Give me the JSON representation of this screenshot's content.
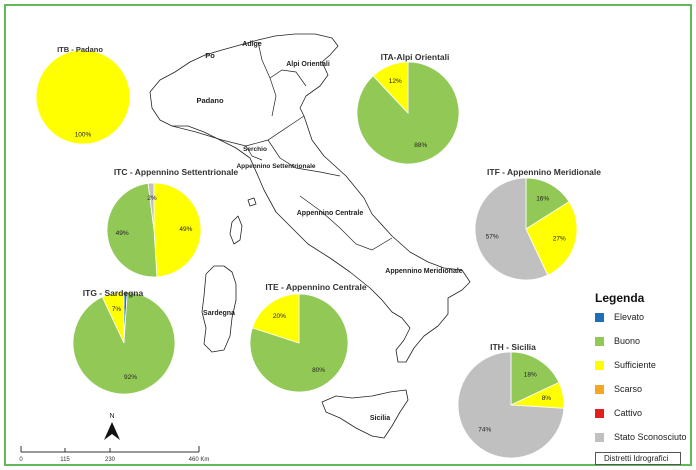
{
  "regions": [
    {
      "key": "po",
      "label": "Po"
    },
    {
      "key": "adige",
      "label": "Adige"
    },
    {
      "key": "alpi",
      "label": "Alpi Orientali"
    },
    {
      "key": "padano",
      "label": "Padano"
    },
    {
      "key": "serchio",
      "label": "Serchio"
    },
    {
      "key": "app_sett",
      "label": "Appennino Settentrionale"
    },
    {
      "key": "app_centr",
      "label": "Appennino Centrale"
    },
    {
      "key": "app_merid",
      "label": "Appennino Meridionale"
    },
    {
      "key": "sardegna",
      "label": "Sardegna"
    },
    {
      "key": "sicilia",
      "label": "Sicilia"
    }
  ],
  "chart_data": [
    {
      "type": "pie",
      "title": "ITB - Padano",
      "labels": [
        "Sufficiente"
      ],
      "values": [
        100
      ],
      "value_labels": [
        "100%"
      ]
    },
    {
      "type": "pie",
      "title": "ITA-Alpi Orientali",
      "labels": [
        "Buono",
        "Sufficiente"
      ],
      "values": [
        88,
        12
      ],
      "value_labels": [
        "88%",
        "12%"
      ]
    },
    {
      "type": "pie",
      "title": "ITC - Appennino Settentrionale",
      "labels": [
        "Sufficiente",
        "Buono",
        "Stato Sconosciuto"
      ],
      "values": [
        49,
        49,
        2
      ],
      "value_labels": [
        "49%",
        "49%",
        "2%"
      ]
    },
    {
      "type": "pie",
      "title": "ITF - Appennino Meridionale",
      "labels": [
        "Buono",
        "Sufficiente",
        "Stato Sconosciuto"
      ],
      "values": [
        16,
        27,
        57
      ],
      "value_labels": [
        "16%",
        "27%",
        "57%"
      ]
    },
    {
      "type": "pie",
      "title": "ITG - Sardegna",
      "labels": [
        "Elevato",
        "Buono",
        "Sufficiente"
      ],
      "values": [
        1,
        92,
        7
      ],
      "value_labels": [
        "1%",
        "92%",
        "7%"
      ]
    },
    {
      "type": "pie",
      "title": "ITE - Appennino Centrale",
      "labels": [
        "Buono",
        "Sufficiente"
      ],
      "values": [
        80,
        20
      ],
      "value_labels": [
        "80%",
        "20%"
      ]
    },
    {
      "type": "pie",
      "title": "ITH - Sicilia",
      "labels": [
        "Buono",
        "Sufficiente",
        "Stato Sconosciuto"
      ],
      "values": [
        18,
        8,
        74
      ],
      "value_labels": [
        "18%",
        "8%",
        "74%"
      ]
    }
  ],
  "legend": {
    "title": "Legenda",
    "items": [
      {
        "label": "Elevato",
        "color": "#1f6fb5"
      },
      {
        "label": "Buono",
        "color": "#92c956"
      },
      {
        "label": "Sufficiente",
        "color": "#ffff00"
      },
      {
        "label": "Scarso",
        "color": "#f5a623"
      },
      {
        "label": "Cattivo",
        "color": "#e0201b"
      },
      {
        "label": "Stato Sconosciuto",
        "color": "#c0c0c0"
      }
    ],
    "boundary_label": "Distretti Idrografici"
  },
  "scale_bar": {
    "ticks": [
      "0",
      "115",
      "230",
      "460 Km"
    ]
  },
  "north_label": "N"
}
